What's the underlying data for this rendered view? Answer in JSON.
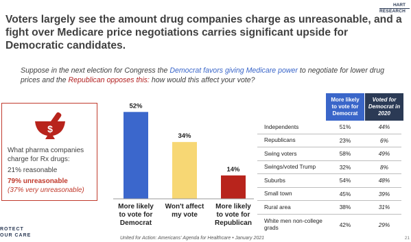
{
  "headline": "Voters largely see the amount drug companies charge as unreasonable, and a fight over Medicare price negotiations carries significant upside for Democratic candidates.",
  "logo": {
    "line1": "HART",
    "line2": "RESEARCH"
  },
  "question": {
    "part1": "Suppose in the next election for Congress the ",
    "dem": "Democrat favors giving Medicare power",
    "part2": " to negotiate for lower drug prices and the ",
    "rep": "Republican opposes this:",
    "part3": "  how would this affect your vote?"
  },
  "pharma_box": {
    "icon": "mortar-pestle-dollar-icon",
    "question": "What pharma companies charge for Rx drugs:",
    "reasonable": "21% reasonable",
    "unreasonable": "79% unreasonable",
    "very_unreasonable": "(37% very unreasonable)",
    "accent": "#c0392b"
  },
  "chart_data": {
    "type": "bar",
    "categories": [
      "More likely to vote for Democrat",
      "Won't affect my vote",
      "More likely to vote for Republican"
    ],
    "category_lines": [
      [
        "More likely",
        "to vote for",
        "Democrat"
      ],
      [
        "Won't affect",
        "my vote"
      ],
      [
        "More likely",
        "to vote for",
        "Republican"
      ]
    ],
    "values": [
      52,
      34,
      14
    ],
    "data_labels": [
      "52%",
      "34%",
      "14%"
    ],
    "colors": [
      "#3b67cc",
      "#f7d774",
      "#b8241c"
    ],
    "ylim": [
      0,
      55
    ],
    "grid": false
  },
  "table": {
    "headers": [
      "More likely to vote for Democrat",
      "Voted for Democrat in 2020"
    ],
    "header_colors": [
      "#3a66c9",
      "#2b3a55"
    ],
    "rows": [
      {
        "group": "Independents",
        "v1": "51%",
        "v2": "44%"
      },
      {
        "group": "Republicans",
        "v1": "23%",
        "v2": "6%"
      },
      {
        "group": "Swing voters",
        "v1": "58%",
        "v2": "49%"
      },
      {
        "group": "Swings/voted Trump",
        "v1": "32%",
        "v2": "8%"
      },
      {
        "group": "Suburbs",
        "v1": "54%",
        "v2": "48%"
      },
      {
        "group": "Small town",
        "v1": "45%",
        "v2": "39%"
      },
      {
        "group": "Rural area",
        "v1": "38%",
        "v2": "31%"
      },
      {
        "group": "White men non-college grads",
        "v1": "42%",
        "v2": "29%"
      }
    ]
  },
  "footer": "United for Action: Americans' Agenda for Healthcare • January 2021",
  "protect_logo": {
    "line1": "ROTECT",
    "line2": "OUR CARE"
  },
  "page_number": "21"
}
